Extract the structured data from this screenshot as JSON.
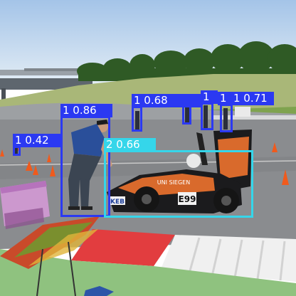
{
  "colors": {
    "sky_top": "#a9c8ea",
    "sky_bottom": "#dde9f3",
    "trees": "#2f5a25",
    "grass": "#8fae63",
    "asphalt": "#8b8d90",
    "curb_red": "#e23d3f",
    "curb_white": "#f2f2f2",
    "car_orange": "#d96a2c",
    "car_black": "#1b1b1d",
    "class_person": "#2b39f2",
    "class_car": "#35d6ea"
  },
  "scene": {
    "car_number": "E99",
    "team_sponsor": "UNI SIEGEN",
    "sponsor_small": "KEB"
  },
  "detections": [
    {
      "class_id": "1",
      "label": "1 0.86",
      "confidence": 0.86,
      "color": "#2b39f2"
    },
    {
      "class_id": "1",
      "label": "1 0.42",
      "confidence": 0.42,
      "color": "#2b39f2"
    },
    {
      "class_id": "1",
      "label": "1 0.68",
      "confidence": 0.68,
      "color": "#2b39f2"
    },
    {
      "class_id": "1",
      "label": "1",
      "confidence": null,
      "color": "#2b39f2"
    },
    {
      "class_id": "1",
      "label": "1",
      "confidence": null,
      "color": "#2b39f2"
    },
    {
      "class_id": "1",
      "label": "1 0.71",
      "confidence": 0.71,
      "color": "#2b39f2"
    },
    {
      "class_id": "2",
      "label": "2 0.66",
      "confidence": 0.66,
      "color": "#35d6ea"
    }
  ]
}
